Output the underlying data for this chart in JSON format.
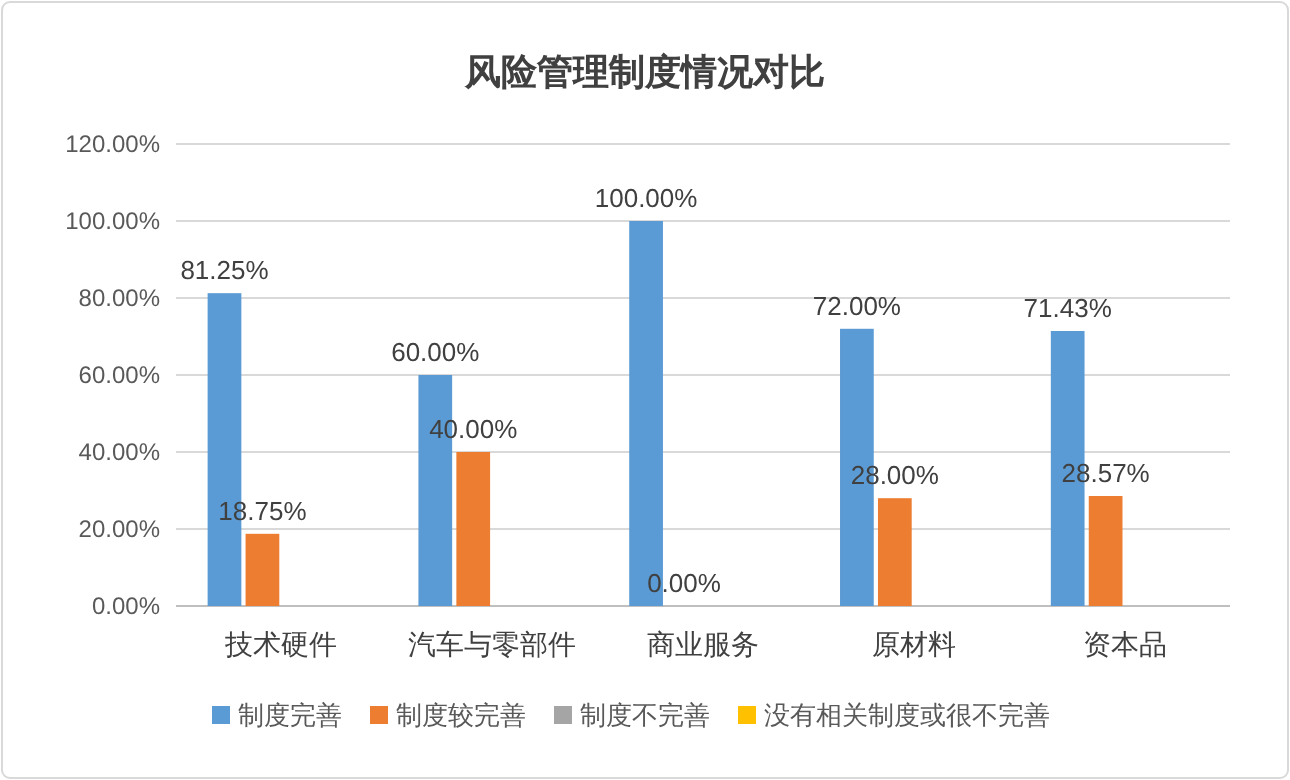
{
  "chart_data": {
    "type": "bar",
    "title": "风险管理制度情况对比",
    "categories": [
      "技术硬件",
      "汽车与零部件",
      "商业服务",
      "原材料",
      "资本品"
    ],
    "series": [
      {
        "name": "制度完善",
        "color": "#5b9bd5",
        "values": [
          81.25,
          60.0,
          100.0,
          72.0,
          71.43
        ],
        "value_labels": [
          "81.25%",
          "60.00%",
          "100.00%",
          "72.00%",
          "71.43%"
        ]
      },
      {
        "name": "制度较完善",
        "color": "#ed7d31",
        "values": [
          18.75,
          40.0,
          0.0,
          28.0,
          28.57
        ],
        "value_labels": [
          "18.75%",
          "40.00%",
          "0.00%",
          "28.00%",
          "28.57%"
        ]
      },
      {
        "name": "制度不完善",
        "color": "#a5a5a5",
        "values": [
          null,
          null,
          null,
          null,
          null
        ]
      },
      {
        "name": "没有相关制度或很不完善",
        "color": "#ffc000",
        "values": [
          null,
          null,
          null,
          null,
          null
        ]
      }
    ],
    "ylim": [
      0,
      120
    ],
    "yticks": [
      {
        "value": 0,
        "label": "0.00%"
      },
      {
        "value": 20,
        "label": "20.00%"
      },
      {
        "value": 40,
        "label": "40.00%"
      },
      {
        "value": 60,
        "label": "60.00%"
      },
      {
        "value": 80,
        "label": "80.00%"
      },
      {
        "value": 100,
        "label": "100.00%"
      },
      {
        "value": 120,
        "label": "120.00%"
      }
    ],
    "grid": "y",
    "legend": "bottom"
  }
}
